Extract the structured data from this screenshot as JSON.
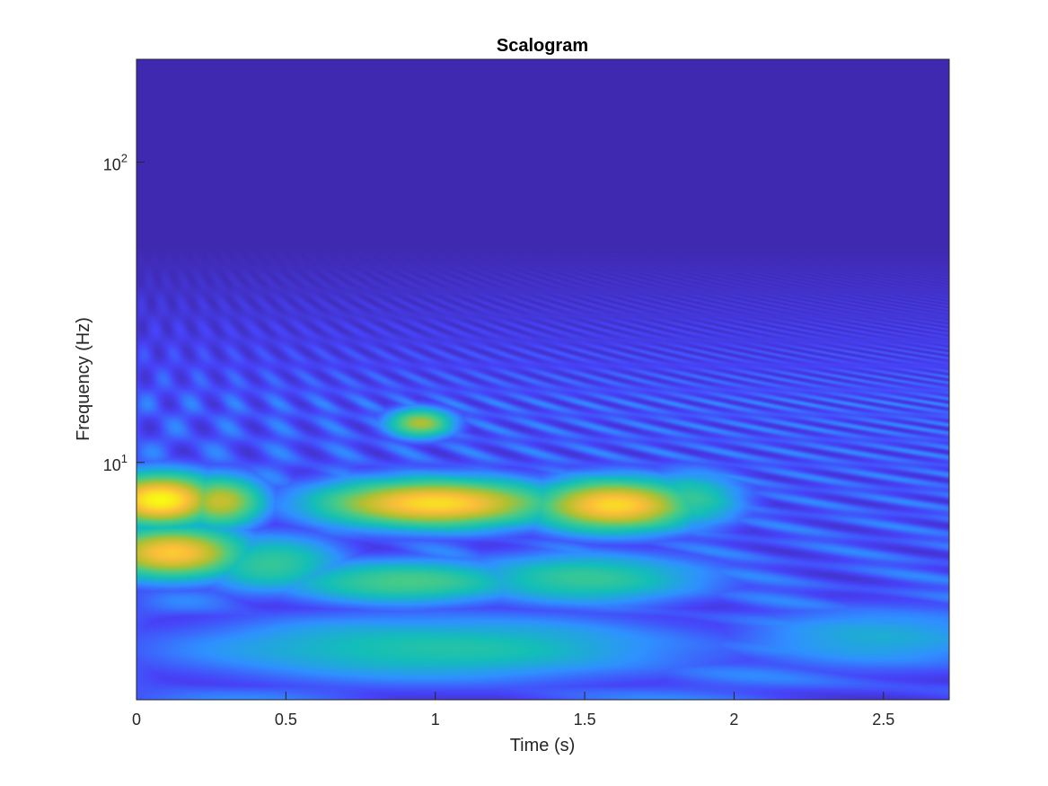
{
  "chart_data": {
    "type": "heatmap",
    "title": "Scalogram",
    "xlabel": "Time (s)",
    "ylabel": "Frequency (Hz)",
    "xlim": [
      0,
      2.72
    ],
    "ylim": [
      1.62,
      220
    ],
    "y_scale": "log",
    "x_ticks": [
      0,
      0.5,
      1,
      1.5,
      2,
      2.5
    ],
    "x_tick_labels": [
      "0",
      "0.5",
      "1",
      "1.5",
      "2",
      "2.5"
    ],
    "y_ticks": [
      {
        "value": 10,
        "base": "10",
        "exp": "1"
      },
      {
        "value": 100,
        "base": "10",
        "exp": "2"
      }
    ],
    "colormap": [
      "#3e26a8",
      "#4743f8",
      "#2f91ff",
      "#13beb8",
      "#48cb86",
      "#b2c030",
      "#fbbe3a",
      "#f8fa13"
    ],
    "hotspots": [
      {
        "t": 0.08,
        "f": 7.5,
        "value": 1.0,
        "dt": 0.16,
        "df": 0.07
      },
      {
        "t": 0.28,
        "f": 7.4,
        "value": 0.75,
        "dt": 0.12,
        "df": 0.07
      },
      {
        "t": 1.0,
        "f": 7.3,
        "value": 0.93,
        "dt": 0.32,
        "df": 0.065
      },
      {
        "t": 1.6,
        "f": 7.2,
        "value": 0.92,
        "dt": 0.22,
        "df": 0.07
      },
      {
        "t": 1.85,
        "f": 7.5,
        "value": 0.5,
        "dt": 0.15,
        "df": 0.08
      },
      {
        "t": 0.12,
        "f": 5.0,
        "value": 0.88,
        "dt": 0.2,
        "df": 0.07
      },
      {
        "t": 0.45,
        "f": 4.6,
        "value": 0.5,
        "dt": 0.2,
        "df": 0.08
      },
      {
        "t": 0.9,
        "f": 4.0,
        "value": 0.55,
        "dt": 0.35,
        "df": 0.06
      },
      {
        "t": 1.5,
        "f": 4.1,
        "value": 0.5,
        "dt": 0.35,
        "df": 0.07
      },
      {
        "t": 0.95,
        "f": 13.5,
        "value": 0.7,
        "dt": 0.09,
        "df": 0.04
      },
      {
        "t": 1.0,
        "f": 2.4,
        "value": 0.45,
        "dt": 0.7,
        "df": 0.09
      },
      {
        "t": 2.5,
        "f": 2.6,
        "value": 0.35,
        "dt": 0.4,
        "df": 0.09
      }
    ]
  }
}
